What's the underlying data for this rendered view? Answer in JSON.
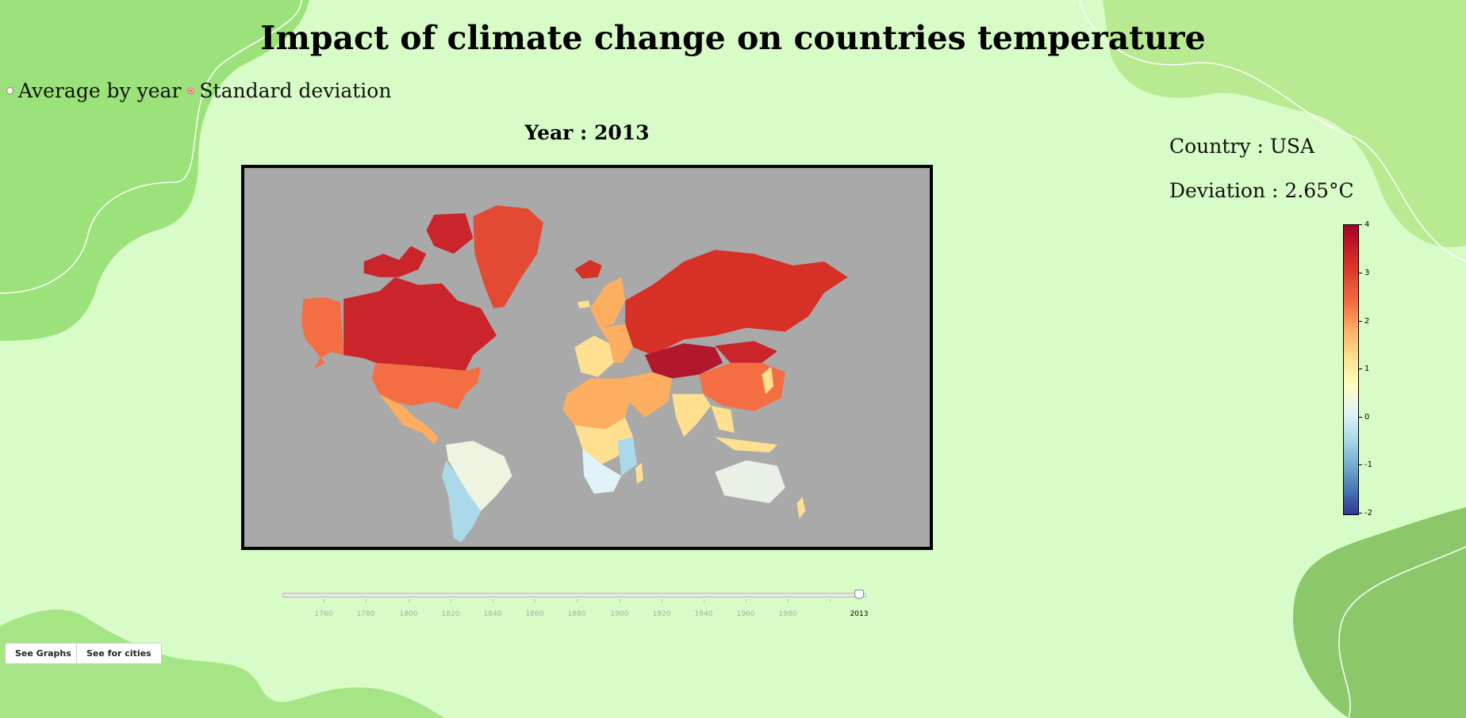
{
  "header": {
    "title": "Impact of climate change on countries temperature"
  },
  "mode": {
    "options": [
      {
        "label": "Average by year",
        "checked": false
      },
      {
        "label": "Standard deviation",
        "checked": true
      }
    ]
  },
  "map": {
    "year_title": "Year : 2013",
    "ocean_color": "#a9a9a9"
  },
  "info": {
    "country": "Country : USA",
    "deviation": "Deviation : 2.65°C"
  },
  "colorbar": {
    "ticks": [
      "4",
      "3",
      "2",
      "1",
      "0",
      "-1",
      "-2"
    ],
    "min": -2,
    "max": 4,
    "colors": [
      "#a50026",
      "#d73027",
      "#f46d43",
      "#fdae61",
      "#fee090",
      "#ffffbf",
      "#e0f3f8",
      "#abd9e9",
      "#74add1",
      "#4575b4",
      "#313695"
    ]
  },
  "slider": {
    "labels": [
      "1760",
      "1780",
      "1800",
      "1820",
      "1840",
      "1860",
      "1880",
      "1900",
      "1920",
      "1940",
      "1960",
      "1980"
    ],
    "current_label": "2013",
    "value": 2013
  },
  "buttons": {
    "graphs": "See Graphs",
    "cities": "See for cities"
  }
}
